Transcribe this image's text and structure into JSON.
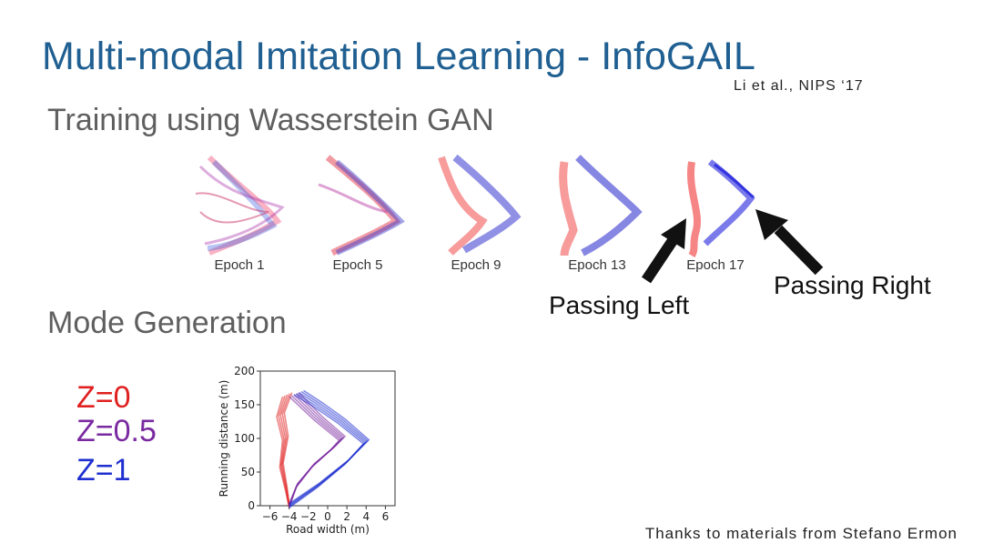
{
  "slide": {
    "title": "Multi-modal Imitation Learning - InfoGAIL",
    "citation": "Li et al., NIPS ‘17",
    "section_training": "Training using Wasserstein GAN",
    "section_mode": "Mode Generation",
    "credit": "Thanks to materials from Stefano Ermon"
  },
  "epochs": [
    {
      "label": "Epoch 1"
    },
    {
      "label": "Epoch 5"
    },
    {
      "label": "Epoch 9"
    },
    {
      "label": "Epoch 13"
    },
    {
      "label": "Epoch 17"
    }
  ],
  "annotations": {
    "passing_left": "Passing Left",
    "passing_right": "Passing Right"
  },
  "legend": [
    {
      "label": "Z=0",
      "color": "#e02020"
    },
    {
      "label": "Z=0.5",
      "color": "#7a2aa0"
    },
    {
      "label": "Z=1",
      "color": "#1f2fd0"
    }
  ],
  "chart_data": {
    "type": "line",
    "xlabel": "Road width (m)",
    "ylabel": "Running distance (m)",
    "xlim": [
      -7,
      7
    ],
    "ylim": [
      0,
      200
    ],
    "xticks": [
      -6,
      -4,
      -2,
      0,
      2,
      4,
      6
    ],
    "yticks": [
      0,
      50,
      100,
      150,
      200
    ],
    "xtick_labels": [
      "−6",
      "−4",
      "−2",
      "0",
      "2",
      "4",
      "6"
    ],
    "ytick_labels": [
      "0",
      "50",
      "100",
      "150",
      "200"
    ],
    "series": [
      {
        "color": "#e02020",
        "points": [
          [
            -4,
            0
          ],
          [
            -4.3,
            25
          ],
          [
            -4.8,
            60
          ],
          [
            -4.4,
            100
          ],
          [
            -4.9,
            135
          ],
          [
            -4.2,
            165
          ]
        ]
      },
      {
        "color": "#7a2aa0",
        "points": [
          [
            -4,
            0
          ],
          [
            -3.2,
            30
          ],
          [
            -1.5,
            60
          ],
          [
            0.5,
            85
          ],
          [
            1.5,
            100
          ],
          [
            -1,
            130
          ],
          [
            -3.5,
            165
          ]
        ]
      },
      {
        "color": "#1f2fd0",
        "points": [
          [
            -4,
            0
          ],
          [
            -1,
            30
          ],
          [
            2,
            65
          ],
          [
            4,
            95
          ],
          [
            1.5,
            125
          ],
          [
            -1,
            150
          ],
          [
            -3,
            168
          ]
        ]
      }
    ]
  }
}
